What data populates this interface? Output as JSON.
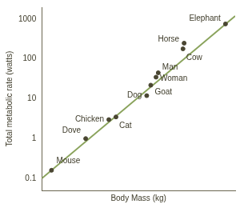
{
  "chart_data": {
    "type": "scatter",
    "x_label": "Body Mass (kg)",
    "y_label": "Total metabolic rate (watts)",
    "log": true,
    "grid": false,
    "tick_labels": "y",
    "xlim": [
      0.01,
      10000
    ],
    "ylim": [
      0.05,
      2000
    ],
    "yticks": [
      0.1,
      1,
      10,
      100,
      1000
    ],
    "color": "#4a4632",
    "labels": [
      "Mouse",
      "Dove",
      "Chicken",
      "Cat",
      "Dog",
      "Goat",
      "Woman",
      "Man",
      "Cow",
      "Horse",
      "Elephant"
    ],
    "x": [
      0.02,
      0.23,
      1.2,
      2,
      18,
      24,
      35,
      41,
      240,
      260,
      5000
    ],
    "values": [
      0.16,
      1.0,
      3,
      3.5,
      12,
      22,
      35,
      45,
      180,
      250,
      760
    ],
    "trend_line": {
      "x": [
        0.01,
        10000
      ],
      "values": [
        0.1,
        1200
      ],
      "color": "#8aa35c"
    }
  }
}
